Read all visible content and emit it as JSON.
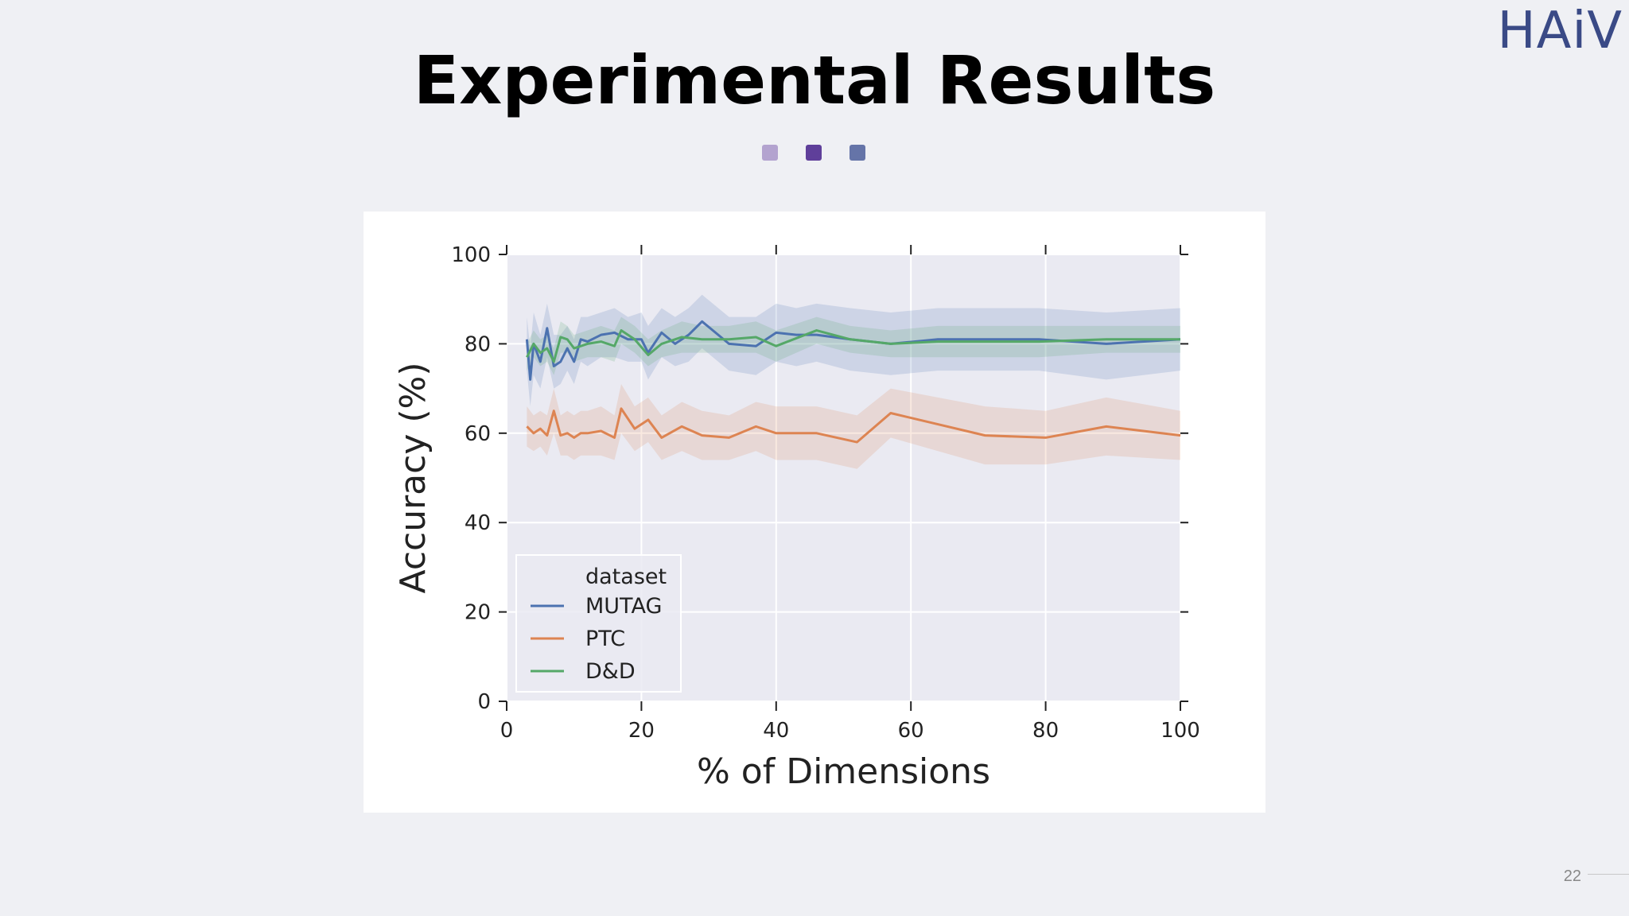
{
  "slide": {
    "title": "Experimental Results",
    "logo": "HAiV",
    "page_number": "22",
    "dots": [
      "#b3a3cf",
      "#5f3f9a",
      "#6574a8"
    ]
  },
  "chart_data": {
    "type": "line",
    "xlabel": "% of Dimensions",
    "ylabel": "Accuracy (%)",
    "xlim": [
      0,
      100
    ],
    "ylim": [
      0,
      100
    ],
    "xticks": [
      0,
      20,
      40,
      60,
      80,
      100
    ],
    "yticks": [
      0,
      20,
      40,
      60,
      80,
      100
    ],
    "grid": true,
    "legend": {
      "title": "dataset",
      "placement": "bottom-left"
    },
    "series": [
      {
        "name": "MUTAG",
        "color": "#4c72b0",
        "x": [
          3,
          3.5,
          4,
          5,
          6,
          7,
          8,
          9,
          10,
          11,
          12,
          14,
          16,
          18,
          20,
          21,
          23,
          25,
          27,
          29,
          33,
          37,
          40,
          43,
          46,
          51,
          57,
          64,
          71,
          79,
          89,
          100
        ],
        "y": [
          81,
          72,
          80,
          76,
          83.5,
          75,
          76,
          79,
          76,
          81,
          80.5,
          82,
          82.5,
          81,
          81,
          78,
          82.5,
          80,
          82,
          85,
          80,
          79.5,
          82.5,
          82,
          82,
          81,
          80,
          81,
          81,
          81,
          80,
          81
        ],
        "band": [
          [
            74,
            86
          ],
          [
            66,
            79
          ],
          [
            73,
            87
          ],
          [
            70,
            82
          ],
          [
            77,
            89
          ],
          [
            70,
            82
          ],
          [
            71,
            82
          ],
          [
            74,
            84
          ],
          [
            71,
            81
          ],
          [
            76,
            86
          ],
          [
            75,
            86
          ],
          [
            77,
            87
          ],
          [
            77,
            88
          ],
          [
            76,
            86
          ],
          [
            76,
            87
          ],
          [
            72,
            84
          ],
          [
            77,
            88
          ],
          [
            75,
            86
          ],
          [
            76,
            88
          ],
          [
            79,
            91
          ],
          [
            74,
            86
          ],
          [
            73,
            86
          ],
          [
            76,
            89
          ],
          [
            75,
            88
          ],
          [
            76,
            89
          ],
          [
            74,
            88
          ],
          [
            73,
            87
          ],
          [
            74,
            88
          ],
          [
            74,
            88
          ],
          [
            74,
            88
          ],
          [
            72,
            87
          ],
          [
            74,
            88
          ]
        ]
      },
      {
        "name": "PTC",
        "color": "#dd8452",
        "x": [
          3,
          4,
          5,
          6,
          7,
          8,
          9,
          10,
          11,
          12,
          14,
          16,
          17,
          19,
          21,
          23,
          26,
          29,
          33,
          37,
          40,
          46,
          52,
          57,
          64,
          71,
          80,
          89,
          100
        ],
        "y": [
          61.5,
          60,
          61,
          59.5,
          65,
          59.5,
          60,
          59,
          60,
          60,
          60.5,
          59,
          65.5,
          61,
          63,
          59,
          61.5,
          59.5,
          59,
          61.5,
          60,
          60,
          58,
          64.5,
          62,
          59.5,
          59,
          61.5,
          59.5
        ],
        "band": [
          [
            57,
            66
          ],
          [
            56,
            64
          ],
          [
            57,
            65
          ],
          [
            55,
            64
          ],
          [
            60,
            70
          ],
          [
            55,
            64
          ],
          [
            55,
            65
          ],
          [
            54,
            64
          ],
          [
            55,
            65
          ],
          [
            55,
            65
          ],
          [
            55,
            66
          ],
          [
            54,
            64
          ],
          [
            60,
            71
          ],
          [
            56,
            66
          ],
          [
            58,
            68
          ],
          [
            54,
            64
          ],
          [
            56,
            67
          ],
          [
            54,
            65
          ],
          [
            54,
            64
          ],
          [
            56,
            67
          ],
          [
            54,
            66
          ],
          [
            54,
            66
          ],
          [
            52,
            64
          ],
          [
            59,
            70
          ],
          [
            56,
            68
          ],
          [
            53,
            66
          ],
          [
            53,
            65
          ],
          [
            55,
            68
          ],
          [
            54,
            65
          ]
        ]
      },
      {
        "name": "D&D",
        "color": "#55a868",
        "x": [
          3,
          4,
          5,
          6,
          7,
          8,
          9,
          10,
          12,
          14,
          16,
          17,
          19,
          21,
          23,
          26,
          29,
          33,
          37,
          40,
          46,
          51,
          57,
          64,
          71,
          79,
          89,
          100
        ],
        "y": [
          77,
          80,
          78,
          79,
          76,
          81.5,
          81,
          79,
          80,
          80.5,
          79.5,
          83,
          81,
          77.5,
          80,
          81.5,
          81,
          81,
          81.5,
          79.5,
          83,
          81,
          80,
          80.5,
          80.5,
          80.5,
          81,
          81
        ],
        "band": [
          [
            74,
            80
          ],
          [
            77,
            83
          ],
          [
            75,
            81
          ],
          [
            76,
            82
          ],
          [
            73,
            79
          ],
          [
            78,
            85
          ],
          [
            78,
            84
          ],
          [
            76,
            82
          ],
          [
            77,
            83
          ],
          [
            77,
            84
          ],
          [
            76,
            83
          ],
          [
            80,
            86
          ],
          [
            78,
            84
          ],
          [
            75,
            81
          ],
          [
            77,
            83
          ],
          [
            78,
            85
          ],
          [
            78,
            84
          ],
          [
            78,
            84
          ],
          [
            78,
            85
          ],
          [
            76,
            83
          ],
          [
            80,
            86
          ],
          [
            78,
            84
          ],
          [
            77,
            83
          ],
          [
            77,
            84
          ],
          [
            77,
            84
          ],
          [
            77,
            84
          ],
          [
            78,
            84
          ],
          [
            78,
            84
          ]
        ]
      }
    ]
  }
}
